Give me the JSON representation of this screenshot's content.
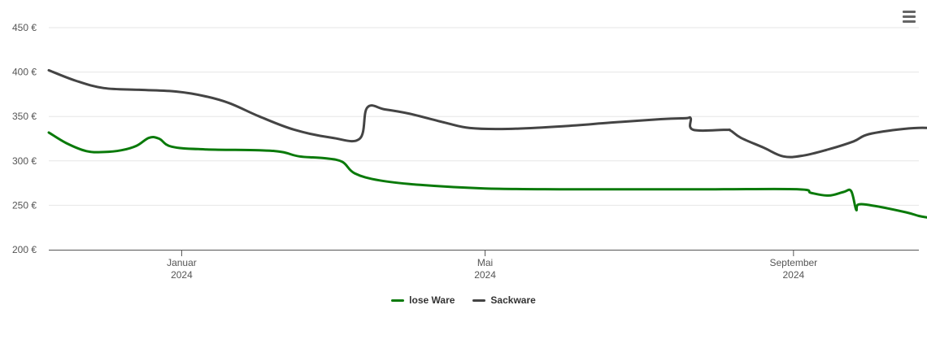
{
  "menu": {
    "icon": "hamburger-menu-icon"
  },
  "chart_data": {
    "type": "line",
    "title": "",
    "xlabel": "",
    "ylabel": "",
    "ylim": [
      200,
      450
    ],
    "yticks": [
      "200 €",
      "250 €",
      "300 €",
      "350 €",
      "400 €",
      "450 €"
    ],
    "ytick_values": [
      200,
      250,
      300,
      350,
      400,
      450
    ],
    "xlim": [
      "2023-11-09",
      "2024-10-21"
    ],
    "xticks": [
      {
        "date": "2024-01-01",
        "month": "Januar",
        "year": "2024"
      },
      {
        "date": "2024-05-01",
        "month": "Mai",
        "year": "2024"
      },
      {
        "date": "2024-09-01",
        "month": "September",
        "year": "2024"
      }
    ],
    "grid": true,
    "legend_position": "bottom-center",
    "series": [
      {
        "name": "lose Ware",
        "color": "#0a7a0a",
        "points": [
          [
            "2023-11-09",
            332
          ],
          [
            "2023-11-16",
            320
          ],
          [
            "2023-11-24",
            311
          ],
          [
            "2023-12-01",
            310
          ],
          [
            "2023-12-08",
            312
          ],
          [
            "2023-12-14",
            317
          ],
          [
            "2023-12-19",
            326
          ],
          [
            "2023-12-23",
            325
          ],
          [
            "2023-12-28",
            316
          ],
          [
            "2024-01-10",
            313
          ],
          [
            "2024-02-01",
            312
          ],
          [
            "2024-02-10",
            310
          ],
          [
            "2024-02-17",
            305
          ],
          [
            "2024-02-27",
            303
          ],
          [
            "2024-03-05",
            299
          ],
          [
            "2024-03-10",
            286
          ],
          [
            "2024-03-20",
            278
          ],
          [
            "2024-04-05",
            273
          ],
          [
            "2024-05-01",
            269
          ],
          [
            "2024-06-01",
            268
          ],
          [
            "2024-07-01",
            268
          ],
          [
            "2024-08-01",
            268
          ],
          [
            "2024-09-03",
            268
          ],
          [
            "2024-09-08",
            264
          ],
          [
            "2024-09-15",
            261
          ],
          [
            "2024-09-21",
            265
          ],
          [
            "2024-09-24",
            266
          ],
          [
            "2024-09-26",
            245
          ],
          [
            "2024-09-27",
            251
          ],
          [
            "2024-10-04",
            249
          ],
          [
            "2024-10-16",
            242
          ],
          [
            "2024-10-21",
            238
          ],
          [
            "2024-10-25",
            236
          ],
          [
            "2024-10-29",
            234
          ]
        ]
      },
      {
        "name": "Sackware",
        "color": "#444444",
        "points": [
          [
            "2023-11-09",
            402
          ],
          [
            "2023-11-20",
            390
          ],
          [
            "2023-12-01",
            382
          ],
          [
            "2023-12-15",
            380
          ],
          [
            "2023-12-30",
            378
          ],
          [
            "2024-01-10",
            373
          ],
          [
            "2024-01-20",
            365
          ],
          [
            "2024-02-01",
            350
          ],
          [
            "2024-02-15",
            335
          ],
          [
            "2024-03-01",
            326
          ],
          [
            "2024-03-12",
            325
          ],
          [
            "2024-03-15",
            360
          ],
          [
            "2024-03-22",
            358
          ],
          [
            "2024-04-01",
            353
          ],
          [
            "2024-04-15",
            343
          ],
          [
            "2024-04-25",
            337
          ],
          [
            "2024-05-10",
            336
          ],
          [
            "2024-06-01",
            339
          ],
          [
            "2024-06-20",
            343
          ],
          [
            "2024-07-10",
            347
          ],
          [
            "2024-07-20",
            348
          ],
          [
            "2024-07-22",
            348
          ],
          [
            "2024-07-23",
            335
          ],
          [
            "2024-08-05",
            335
          ],
          [
            "2024-08-07",
            334
          ],
          [
            "2024-08-11",
            326
          ],
          [
            "2024-08-20",
            315
          ],
          [
            "2024-08-28",
            305
          ],
          [
            "2024-09-05",
            306
          ],
          [
            "2024-09-15",
            313
          ],
          [
            "2024-09-25",
            322
          ],
          [
            "2024-10-01",
            330
          ],
          [
            "2024-10-15",
            336
          ],
          [
            "2024-10-25",
            337
          ],
          [
            "2024-10-29",
            333
          ]
        ]
      }
    ]
  }
}
